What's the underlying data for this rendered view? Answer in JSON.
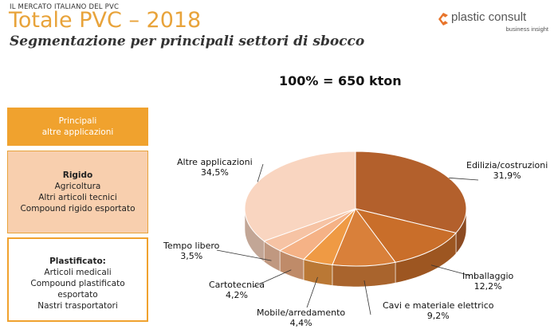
{
  "header": {
    "kicker": "IL MERCATO ITALIANO DEL PVC",
    "title": "Totale PVC – 2018",
    "subtitle": "Segmentazione per principali settori di sbocco"
  },
  "logo": {
    "name": "plastic consult",
    "tagline": "business insight",
    "icon": "chevron-mark-icon",
    "color": "#e8742a"
  },
  "total_label": "100% = 650 kton",
  "side_boxes": {
    "principali": {
      "lines": [
        "Principali",
        "altre applicazioni"
      ]
    },
    "rigido": {
      "heading": "Rigido",
      "items": [
        "Agricoltura",
        "Altri articoli tecnici",
        "Compound rigido esportato"
      ]
    },
    "plastificato": {
      "heading": "Plastificato:",
      "items": [
        "Articoli medicali",
        "Compound plastificato",
        "esportato",
        "Nastri trasportatori"
      ]
    }
  },
  "chart_data": {
    "type": "pie",
    "style": "3d",
    "categories": [
      "Edilizia/costruzioni",
      "Imballaggio",
      "Cavi e materiale elettrico",
      "Mobile/arredamento",
      "Cartotecnica",
      "Tempo libero",
      "Altre applicazioni"
    ],
    "values": [
      31.9,
      12.2,
      9.2,
      4.4,
      4.2,
      3.5,
      34.5
    ],
    "value_labels": [
      "31,9%",
      "12,2%",
      "9,2%",
      "4,4%",
      "4,2%",
      "3,5%",
      "34,5%"
    ],
    "colors": [
      "#b3602c",
      "#c96e2a",
      "#d9803a",
      "#ef9a44",
      "#f5b286",
      "#f6c3a4",
      "#f9d5c0"
    ],
    "start_angle_deg": -90,
    "direction": "clockwise",
    "units": "%"
  }
}
